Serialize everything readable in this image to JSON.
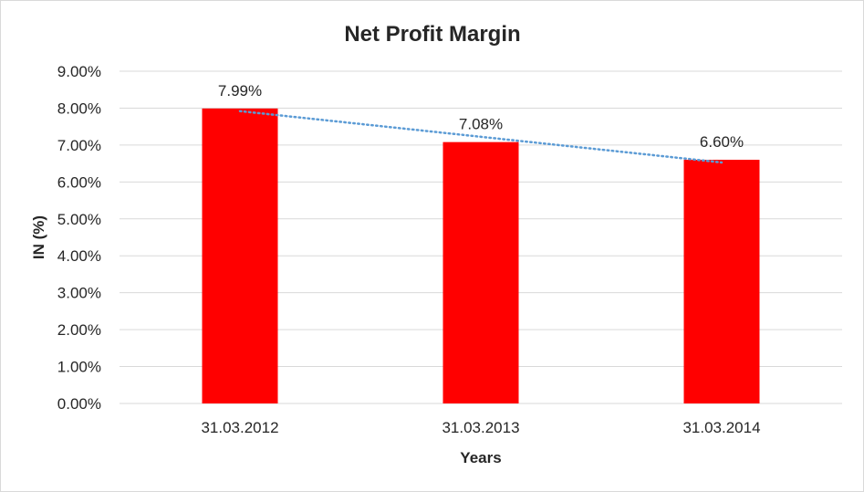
{
  "chart_data": {
    "type": "bar",
    "title": "Net Profit Margin",
    "xlabel": "Years",
    "ylabel": "IN (%)",
    "categories": [
      "31.03.2012",
      "31.03.2013",
      "31.03.2014"
    ],
    "values": [
      7.99,
      7.08,
      6.6
    ],
    "data_labels": [
      "7.99%",
      "7.08%",
      "6.60%"
    ],
    "ylim": [
      0,
      9
    ],
    "y_ticks": [
      0,
      1,
      2,
      3,
      4,
      5,
      6,
      7,
      8,
      9
    ],
    "y_tick_labels": [
      "0.00%",
      "1.00%",
      "2.00%",
      "3.00%",
      "4.00%",
      "5.00%",
      "6.00%",
      "7.00%",
      "8.00%",
      "9.00%"
    ],
    "grid": true,
    "legend": "none",
    "trendline": "linear",
    "bar_color": "#ff0000",
    "trendline_color": "#5b9bd5",
    "gridline_color": "#d9d9d9"
  }
}
